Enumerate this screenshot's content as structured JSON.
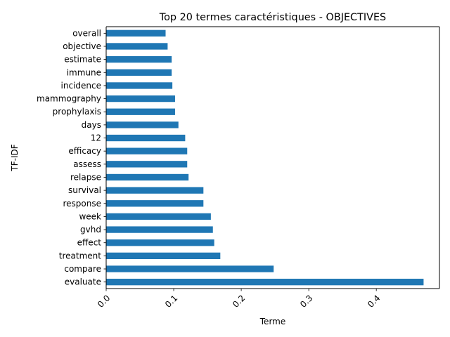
{
  "chart_data": {
    "type": "bar",
    "orientation": "horizontal",
    "title": "Top 20 termes caractéristiques - OBJECTIVES",
    "xlabel": "Terme",
    "ylabel": "TF-IDF",
    "categories": [
      "evaluate",
      "compare",
      "treatment",
      "effect",
      "gvhd",
      "week",
      "response",
      "survival",
      "relapse",
      "assess",
      "efficacy",
      "12",
      "days",
      "prophylaxis",
      "mammography",
      "incidence",
      "immune",
      "estimate",
      "objective",
      "overall"
    ],
    "values": [
      0.47,
      0.248,
      0.169,
      0.16,
      0.158,
      0.155,
      0.144,
      0.144,
      0.122,
      0.12,
      0.12,
      0.117,
      0.107,
      0.102,
      0.102,
      0.098,
      0.097,
      0.097,
      0.091,
      0.088
    ],
    "xlim": [
      0,
      0.4935
    ],
    "xticks": [
      "0.0",
      "0.1",
      "0.2",
      "0.3",
      "0.4"
    ],
    "grid": false,
    "legend": "none",
    "colors": {
      "bar": "#1f77b4",
      "axis": "#000000"
    }
  }
}
